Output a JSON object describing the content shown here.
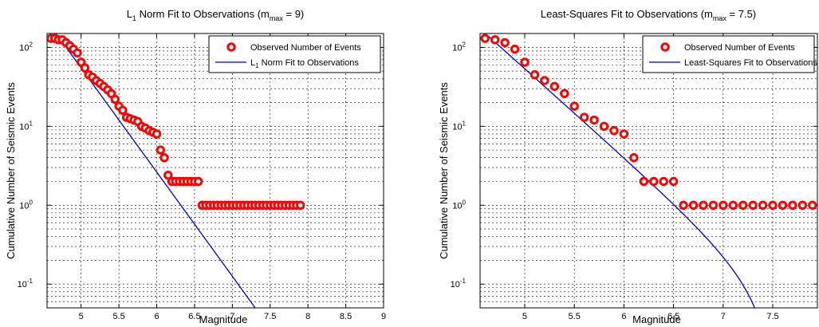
{
  "chart_data": [
    {
      "type": "scatter",
      "title": "L",
      "title_sub": "1",
      "title_rest": " Norm Fit to Observations (m",
      "title_sub2": "max",
      "title_end": " = 9)",
      "xlabel": "Magnitude",
      "ylabel": "Cumulative Number of Seismic Events",
      "xlim": [
        4.55,
        9.0
      ],
      "ylim": [
        0.05,
        150
      ],
      "yscale": "log",
      "grid": true,
      "legend_position": "top-right",
      "xticks": [
        5,
        5.5,
        6,
        6.5,
        7,
        7.5,
        8,
        8.5,
        9
      ],
      "xtick_labels": [
        "5",
        "5.5",
        "6",
        "6.5",
        "7",
        "7.5",
        "8",
        "8.5",
        "9"
      ],
      "yticks": [
        0.1,
        1,
        10,
        100
      ],
      "ytick_labels": [
        {
          "base": "10",
          "exp": "-1"
        },
        {
          "base": "10",
          "exp": "0"
        },
        {
          "base": "10",
          "exp": "1"
        },
        {
          "base": "10",
          "exp": "2"
        }
      ],
      "series": [
        {
          "name": "Observed Number of Events",
          "marker": "circle",
          "color": "#ff0000",
          "x": [
            4.6,
            4.65,
            4.7,
            4.75,
            4.8,
            4.85,
            4.9,
            4.95,
            5.0,
            5.05,
            5.1,
            5.15,
            5.2,
            5.25,
            5.3,
            5.35,
            5.4,
            5.45,
            5.5,
            5.55,
            5.6,
            5.65,
            5.7,
            5.75,
            5.8,
            5.85,
            5.9,
            5.95,
            6.0,
            6.05,
            6.1,
            6.15,
            6.2,
            6.25,
            6.3,
            6.35,
            6.4,
            6.45,
            6.5,
            6.55,
            6.6,
            6.65,
            6.7,
            6.75,
            6.8,
            6.85,
            6.9,
            6.95,
            7.0,
            7.05,
            7.1,
            7.15,
            7.2,
            7.25,
            7.3,
            7.35,
            7.4,
            7.45,
            7.5,
            7.55,
            7.6,
            7.65,
            7.7,
            7.75,
            7.8,
            7.85,
            7.9
          ],
          "y": [
            130,
            130,
            125,
            125,
            115,
            105,
            95,
            85,
            65,
            55,
            45,
            42,
            38,
            35,
            32,
            29,
            26,
            22,
            18,
            16,
            13,
            12.5,
            12,
            11.5,
            10,
            9.5,
            8.8,
            8.4,
            8,
            5,
            4,
            2.4,
            2,
            2,
            2,
            2,
            2,
            2,
            2,
            2,
            1,
            1,
            1,
            1,
            1,
            1,
            1,
            1,
            1,
            1,
            1,
            1,
            1,
            1,
            1,
            1,
            1,
            1,
            1,
            1,
            1,
            1,
            1,
            1,
            1,
            1,
            1
          ]
        },
        {
          "name": "L1 Norm Fit to Observations",
          "name_base": "L",
          "name_sub": "1",
          "name_rest": " Norm Fit to Observations",
          "marker": "line",
          "color": "#0000cc",
          "b": 1.32,
          "a": 8.34,
          "mmax": 9.0
        }
      ]
    },
    {
      "type": "scatter",
      "title": "Least-Squares Fit to Observations (m",
      "title_sub": "max",
      "title_end": " = 7.5)",
      "xlabel": "Magnitude",
      "ylabel": "Cumulative Number of Seismic Events",
      "xlim": [
        4.55,
        7.95
      ],
      "ylim": [
        0.05,
        150
      ],
      "yscale": "log",
      "grid": true,
      "legend_position": "top-right",
      "xticks": [
        5,
        5.5,
        6,
        6.5,
        7,
        7.5
      ],
      "xtick_labels": [
        "5",
        "5.5",
        "6",
        "6.5",
        "7",
        "7.5"
      ],
      "yticks": [
        0.1,
        1,
        10,
        100
      ],
      "ytick_labels": [
        {
          "base": "10",
          "exp": "-1"
        },
        {
          "base": "10",
          "exp": "0"
        },
        {
          "base": "10",
          "exp": "1"
        },
        {
          "base": "10",
          "exp": "2"
        }
      ],
      "series": [
        {
          "name": "Observed Number of Events",
          "marker": "circle",
          "color": "#ff0000",
          "x": [
            4.6,
            4.7,
            4.8,
            4.9,
            5.0,
            5.1,
            5.2,
            5.3,
            5.4,
            5.5,
            5.6,
            5.7,
            5.8,
            5.9,
            6.0,
            6.1,
            6.2,
            6.3,
            6.4,
            6.5,
            6.6,
            6.7,
            6.8,
            6.9,
            7.0,
            7.1,
            7.2,
            7.3,
            7.4,
            7.5,
            7.6,
            7.7,
            7.8,
            7.9
          ],
          "y": [
            130,
            125,
            115,
            95,
            65,
            45,
            38,
            32,
            26,
            18,
            13,
            12,
            10,
            8.8,
            8,
            4,
            2,
            2,
            2,
            2,
            1,
            1,
            1,
            1,
            1,
            1,
            1,
            1,
            1,
            1,
            1,
            1,
            1,
            1
          ]
        },
        {
          "name": "Least-Squares Fit to Observations",
          "marker": "line",
          "color": "#0000cc",
          "b": 1.125,
          "a": 7.355,
          "mmax": 7.5
        }
      ]
    }
  ]
}
